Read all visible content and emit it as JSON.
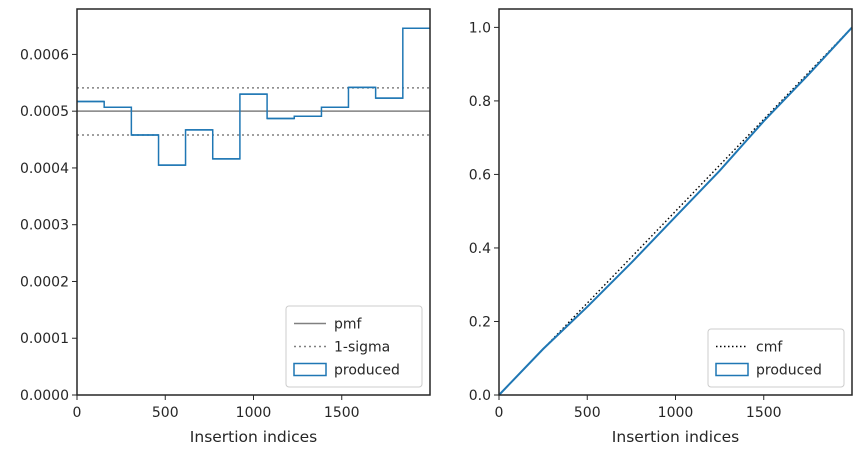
{
  "chart_data": [
    {
      "type": "step",
      "xlabel": "Insertion indices",
      "ylabel": "",
      "xlim": [
        0,
        2000
      ],
      "ylim": [
        0,
        0.00068
      ],
      "xticks": [
        0,
        500,
        1000,
        1500
      ],
      "yticks": [
        0.0,
        0.0001,
        0.0002,
        0.0003,
        0.0004,
        0.0005,
        0.0006
      ],
      "ytick_labels": [
        "0.0000",
        "0.0001",
        "0.0002",
        "0.0003",
        "0.0004",
        "0.0005",
        "0.0006"
      ],
      "legend_position": "lower-right",
      "pmf": {
        "name": "pmf",
        "value": 0.0005,
        "color": "#808080"
      },
      "sigma": {
        "name": "1-sigma",
        "lower": 0.000458,
        "upper": 0.000541,
        "color": "#808080"
      },
      "histogram": {
        "name": "produced",
        "color": "#1f77b4",
        "bin_edges": [
          0,
          154,
          308,
          462,
          615,
          769,
          923,
          1077,
          1231,
          1385,
          1538,
          1692,
          1846,
          2000
        ],
        "values": [
          0.000517,
          0.000507,
          0.000458,
          0.000405,
          0.000467,
          0.000416,
          0.00053,
          0.000487,
          0.000491,
          0.000507,
          0.000542,
          0.000523,
          0.000646
        ]
      }
    },
    {
      "type": "line",
      "xlabel": "Insertion indices",
      "ylabel": "",
      "xlim": [
        0,
        2000
      ],
      "ylim": [
        0,
        1.05
      ],
      "xticks": [
        0,
        500,
        1000,
        1500
      ],
      "yticks": [
        0.0,
        0.2,
        0.4,
        0.6,
        0.8,
        1.0
      ],
      "ytick_labels": [
        "0.0",
        "0.2",
        "0.4",
        "0.6",
        "0.8",
        "1.0"
      ],
      "legend_position": "lower-right",
      "series": [
        {
          "name": "cmf",
          "style": "dotted",
          "color": "#000000",
          "x": [
            0,
            2000
          ],
          "y": [
            0,
            1.0
          ]
        },
        {
          "name": "produced",
          "style": "solid",
          "color": "#1f77b4",
          "x": [
            0,
            250,
            500,
            750,
            1000,
            1250,
            1500,
            1750,
            2000
          ],
          "y": [
            0,
            0.125,
            0.24,
            0.36,
            0.485,
            0.61,
            0.745,
            0.87,
            1.0
          ]
        }
      ]
    }
  ]
}
